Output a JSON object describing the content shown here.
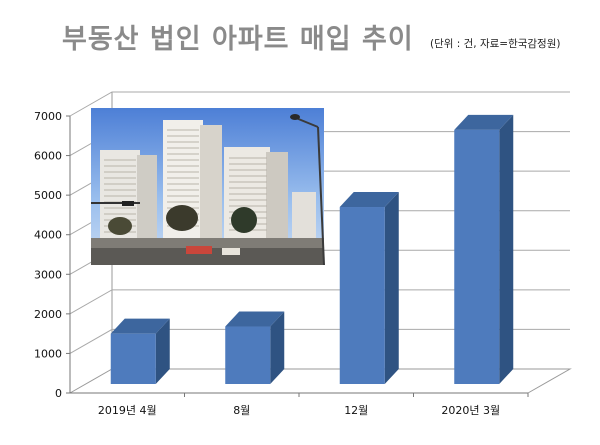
{
  "chart_data": {
    "type": "bar",
    "title": "부동산 법인 아파트 매입 추이",
    "subtitle": "(단위 : 건, 자료=한국감정원)",
    "categories": [
      "2019년 4월",
      "8월",
      "12월",
      "2020년 3월"
    ],
    "series": [
      {
        "values": [
          1500,
          1680,
          4700,
          6650
        ]
      }
    ],
    "yticks": [
      "0",
      "1000",
      "2000",
      "3000",
      "4000",
      "5000",
      "6000",
      "7000"
    ],
    "ylim": [
      0,
      7000
    ],
    "grid": true,
    "bar_color": "#4e7bbd",
    "bar_side_color": "#2f5382",
    "bar_top_color": "#3d669e",
    "inset_photo": "apartment-buildings-photo"
  }
}
